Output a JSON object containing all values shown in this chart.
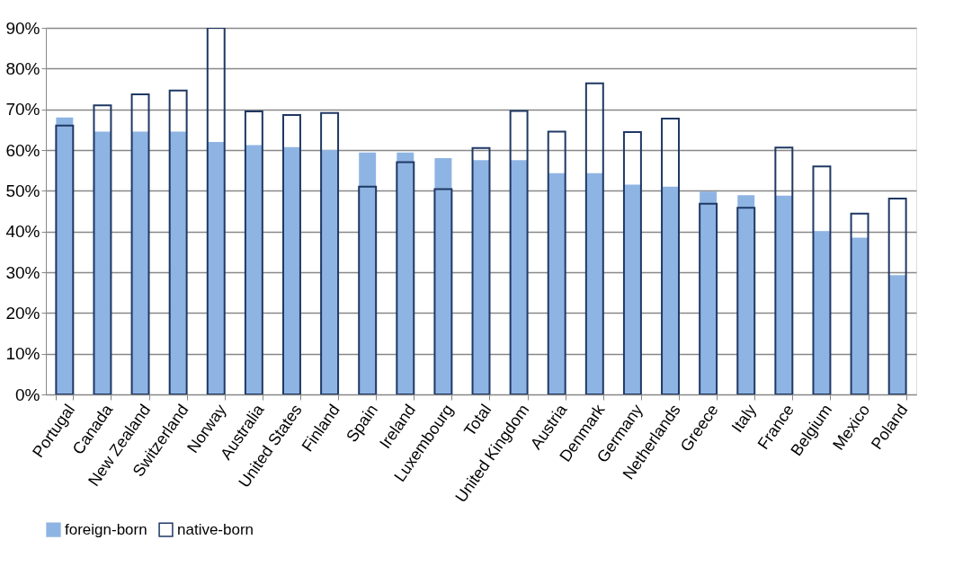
{
  "chart_data": {
    "type": "bar",
    "categories": [
      "Portugal",
      "Canada",
      "New Zealand",
      "Switzerland",
      "Norway",
      "Australia",
      "United States",
      "Finland",
      "Spain",
      "Ireland",
      "Luxembourg",
      "Total",
      "United Kingdom",
      "Austria",
      "Denmark",
      "Germany",
      "Netherlands",
      "Greece",
      "Italy",
      "France",
      "Belgium",
      "Mexico",
      "Poland"
    ],
    "series": [
      {
        "name": "foreign-born",
        "color": "#8eb4e3",
        "values": [
          68,
          64.5,
          64.5,
          64.5,
          62,
          61.2,
          60.7,
          60,
          59.4,
          59.4,
          58,
          57.5,
          57.5,
          54.3,
          54.3,
          51.5,
          51,
          49.8,
          48.9,
          48.8,
          40.1,
          38.5,
          29.3
        ]
      },
      {
        "name": "native-born",
        "color": "#1f3864",
        "values": [
          66,
          71,
          73.7,
          74.6,
          90,
          69.5,
          68.6,
          69.1,
          51,
          57,
          50.4,
          60.5,
          69.6,
          64.5,
          76.4,
          64.4,
          67.7,
          46.8,
          45.8,
          60.6,
          56,
          44.4,
          48.1
        ]
      }
    ],
    "ylim": [
      0,
      90
    ],
    "yticks": [
      {
        "value": 0,
        "label": "0%"
      },
      {
        "value": 10,
        "label": "10%"
      },
      {
        "value": 20,
        "label": "20%"
      },
      {
        "value": 30,
        "label": "30%"
      },
      {
        "value": 40,
        "label": "40%"
      },
      {
        "value": 50,
        "label": "50%"
      },
      {
        "value": 60,
        "label": "60%"
      },
      {
        "value": 70,
        "label": "70%"
      },
      {
        "value": 80,
        "label": "80%"
      },
      {
        "value": 90,
        "label": "90%"
      }
    ],
    "grid": "y",
    "legend": "bottom"
  }
}
